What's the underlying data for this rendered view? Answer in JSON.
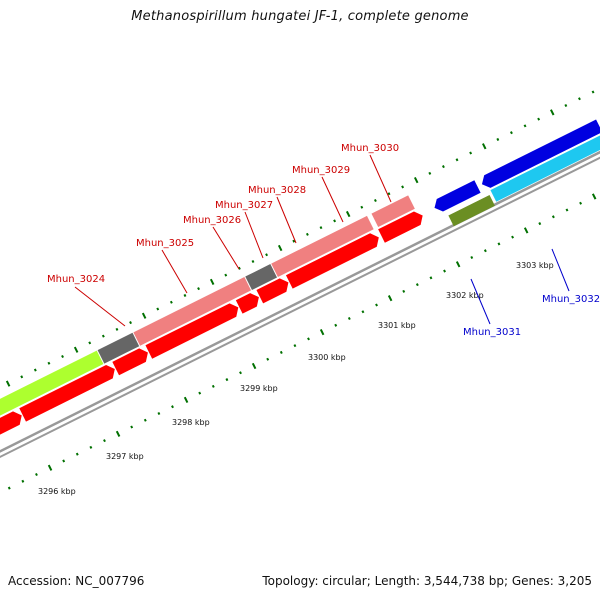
{
  "title": "Methanospirillum hungatei JF-1, complete genome",
  "footer": {
    "accession_label": "Accession:",
    "accession_value": "NC_007796",
    "topology": "Topology: circular;",
    "length": "Length: 3,544,738 bp;",
    "genes": "Genes: 3,205"
  },
  "colors": {
    "forward_cds": "#ff0000",
    "forward_feature": "#f08080",
    "rna": "#666666",
    "large_feature": "#adff2f",
    "reverse_cds": "#0000e0",
    "reverse_feature": "#1ec8f0",
    "other_feature": "#6b8e23",
    "tick": "#007000",
    "backbone": "#999999",
    "forward_label": "#cc0000",
    "reverse_label": "#0000cc"
  },
  "scale": {
    "ticks": [
      "3296 kbp",
      "3297 kbp",
      "3298 kbp",
      "3299 kbp",
      "3300 kbp",
      "3301 kbp",
      "3302 kbp",
      "3303 kbp"
    ]
  },
  "genes": [
    {
      "label": "Mhun_3024",
      "strand": "forward"
    },
    {
      "label": "Mhun_3025",
      "strand": "forward"
    },
    {
      "label": "Mhun_3026",
      "strand": "forward"
    },
    {
      "label": "Mhun_3027",
      "strand": "forward"
    },
    {
      "label": "Mhun_3028",
      "strand": "forward"
    },
    {
      "label": "Mhun_3029",
      "strand": "forward"
    },
    {
      "label": "Mhun_3030",
      "strand": "forward"
    },
    {
      "label": "Mhun_3031",
      "strand": "reverse"
    },
    {
      "label": "Mhun_3032",
      "strand": "reverse"
    }
  ]
}
